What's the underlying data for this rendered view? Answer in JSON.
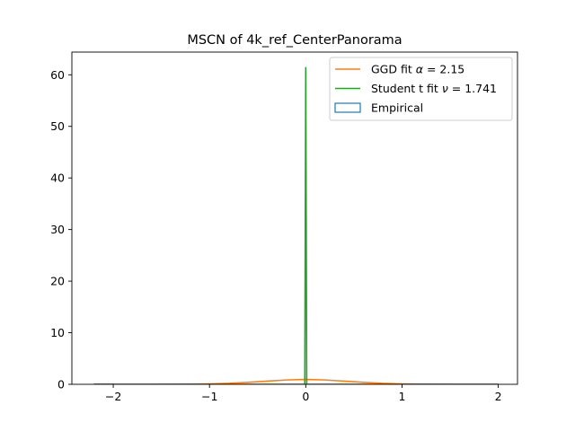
{
  "chart_data": {
    "type": "line",
    "title": "MSCN of 4k_ref_CenterPanorama",
    "xlabel": "",
    "ylabel": "",
    "xlim": [
      -2.43,
      2.2
    ],
    "ylim": [
      0,
      64.4
    ],
    "xticks": [
      -2,
      -1,
      0,
      1,
      2
    ],
    "yticks": [
      0,
      10,
      20,
      30,
      40,
      50,
      60
    ],
    "xtick_labels": [
      "−2",
      "−1",
      "0",
      "1",
      "2"
    ],
    "ytick_labels": [
      "0",
      "10",
      "20",
      "30",
      "40",
      "50",
      "60"
    ],
    "grid": false,
    "legend_position": "top-right",
    "legend": [
      {
        "label_prefix": "GGD fit ",
        "symbol": "α",
        "label_suffix": " = 2.15",
        "color": "#ff7f0e",
        "marker": "line"
      },
      {
        "label_prefix": "Student t fit ",
        "symbol": "ν",
        "label_suffix": " = 1.741",
        "color": "#2ca02c",
        "marker": "line"
      },
      {
        "label_prefix": "Empirical",
        "symbol": "",
        "label_suffix": "",
        "color": "#1f77b4",
        "marker": "box"
      }
    ],
    "series": [
      {
        "name": "GGD fit α = 2.15",
        "color": "#ff7f0e",
        "x": [
          -2.2,
          -2.0,
          -1.8,
          -1.6,
          -1.4,
          -1.2,
          -1.0,
          -0.8,
          -0.6,
          -0.4,
          -0.2,
          0.0,
          0.2,
          0.4,
          0.6,
          0.8,
          1.0,
          1.2,
          1.4,
          1.6,
          1.8,
          2.0
        ],
        "y": [
          0.0,
          0.0,
          0.0,
          0.0,
          0.01,
          0.03,
          0.08,
          0.18,
          0.38,
          0.62,
          0.85,
          0.94,
          0.85,
          0.62,
          0.38,
          0.18,
          0.08,
          0.03,
          0.01,
          0.0,
          0.0,
          0.0
        ]
      },
      {
        "name": "Student t fit ν = 1.741",
        "color": "#2ca02c",
        "x": [
          -2.2,
          -1.0,
          -0.2,
          -0.05,
          -0.02,
          -0.01,
          0.0,
          0.01,
          0.02,
          0.05,
          0.2,
          1.0,
          2.0
        ],
        "y": [
          0.0,
          0.0,
          0.0,
          0.0,
          0.0,
          0.0,
          61.4,
          0.0,
          0.0,
          0.0,
          0.0,
          0.0,
          0.0
        ]
      },
      {
        "name": "Empirical",
        "color": "#1f77b4",
        "x": [
          -2.2,
          -2.0
        ],
        "y": [
          0.0,
          0.0
        ]
      }
    ]
  }
}
